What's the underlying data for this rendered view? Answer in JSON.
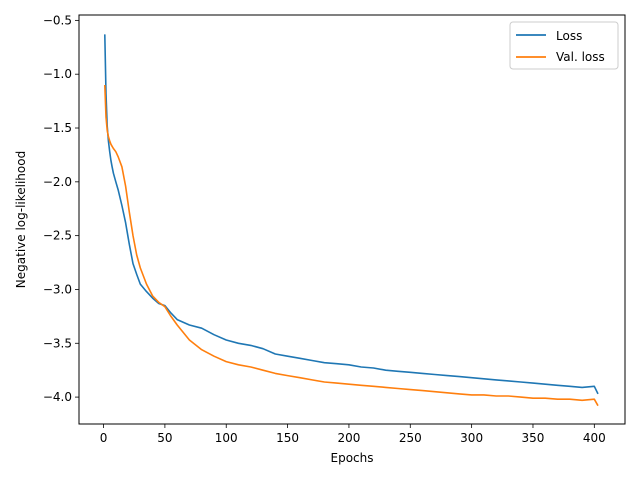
{
  "chart_data": {
    "type": "line",
    "title": "",
    "xlabel": "Epochs",
    "ylabel": "Negative log-likelihood",
    "xlim": [
      -20,
      425
    ],
    "ylim": [
      -4.25,
      -0.45
    ],
    "xticks": [
      0,
      50,
      100,
      150,
      200,
      250,
      300,
      350,
      400
    ],
    "yticks": [
      -4.0,
      -3.5,
      -3.0,
      -2.5,
      -2.0,
      -1.5,
      -1.0,
      -0.5
    ],
    "xtick_labels": [
      "0",
      "50",
      "100",
      "150",
      "200",
      "250",
      "300",
      "350",
      "400"
    ],
    "ytick_labels": [
      "−4.0",
      "−3.5",
      "−3.0",
      "−2.5",
      "−2.0",
      "−1.5",
      "−1.0",
      "−0.5"
    ],
    "grid": false,
    "legend_position": "top-right",
    "x": [
      1,
      2,
      3,
      4,
      5,
      6,
      7,
      8,
      10,
      12,
      15,
      18,
      21,
      24,
      27,
      30,
      35,
      40,
      45,
      50,
      55,
      60,
      70,
      80,
      90,
      100,
      110,
      120,
      130,
      140,
      150,
      160,
      170,
      180,
      190,
      200,
      210,
      220,
      230,
      240,
      250,
      260,
      270,
      280,
      290,
      300,
      310,
      320,
      330,
      340,
      350,
      360,
      370,
      380,
      390,
      400,
      403
    ],
    "series": [
      {
        "name": "Loss",
        "color": "#1f77b4",
        "values": [
          -0.63,
          -1.18,
          -1.48,
          -1.62,
          -1.72,
          -1.8,
          -1.86,
          -1.92,
          -2.0,
          -2.08,
          -2.22,
          -2.38,
          -2.58,
          -2.76,
          -2.86,
          -2.95,
          -3.02,
          -3.08,
          -3.13,
          -3.15,
          -3.22,
          -3.28,
          -3.33,
          -3.36,
          -3.42,
          -3.47,
          -3.5,
          -3.52,
          -3.55,
          -3.6,
          -3.62,
          -3.64,
          -3.66,
          -3.68,
          -3.69,
          -3.7,
          -3.72,
          -3.73,
          -3.75,
          -3.76,
          -3.77,
          -3.78,
          -3.79,
          -3.8,
          -3.81,
          -3.82,
          -3.83,
          -3.84,
          -3.85,
          -3.86,
          -3.87,
          -3.88,
          -3.89,
          -3.9,
          -3.91,
          -3.9,
          -3.97
        ]
      },
      {
        "name": "Val. loss",
        "color": "#ff7f0e",
        "values": [
          -1.1,
          -1.4,
          -1.52,
          -1.58,
          -1.62,
          -1.65,
          -1.67,
          -1.69,
          -1.72,
          -1.77,
          -1.86,
          -2.04,
          -2.28,
          -2.5,
          -2.68,
          -2.8,
          -2.95,
          -3.06,
          -3.12,
          -3.16,
          -3.25,
          -3.33,
          -3.47,
          -3.56,
          -3.62,
          -3.67,
          -3.7,
          -3.72,
          -3.75,
          -3.78,
          -3.8,
          -3.82,
          -3.84,
          -3.86,
          -3.87,
          -3.88,
          -3.89,
          -3.9,
          -3.91,
          -3.92,
          -3.93,
          -3.94,
          -3.95,
          -3.96,
          -3.97,
          -3.98,
          -3.98,
          -3.99,
          -3.99,
          -4.0,
          -4.01,
          -4.01,
          -4.02,
          -4.02,
          -4.03,
          -4.02,
          -4.08
        ]
      }
    ]
  }
}
